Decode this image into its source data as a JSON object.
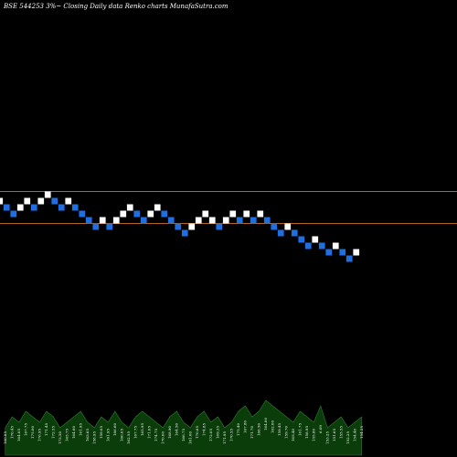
{
  "chart_data": {
    "type": "renko",
    "title": "BSE 544253 3%~  Closing Daily data  Renko  charts MunafaSutra.com",
    "colors": {
      "background": "#000000",
      "up_brick": "#ffffff",
      "down_brick": "#1f6fe0",
      "reference_line": "#b5651d",
      "volume_fill": "#0b3d0b",
      "volume_stroke": "#2f7a2f"
    },
    "bricks": [
      {
        "value": 0,
        "dir": "up"
      },
      {
        "value": -1,
        "dir": "down"
      },
      {
        "value": -2,
        "dir": "down"
      },
      {
        "value": -1,
        "dir": "up"
      },
      {
        "value": 0,
        "dir": "up"
      },
      {
        "value": -1,
        "dir": "down"
      },
      {
        "value": 0,
        "dir": "up"
      },
      {
        "value": 1,
        "dir": "up"
      },
      {
        "value": 0,
        "dir": "down"
      },
      {
        "value": -1,
        "dir": "down"
      },
      {
        "value": 0,
        "dir": "up"
      },
      {
        "value": -1,
        "dir": "down"
      },
      {
        "value": -2,
        "dir": "down"
      },
      {
        "value": -3,
        "dir": "down"
      },
      {
        "value": -4,
        "dir": "down"
      },
      {
        "value": -3,
        "dir": "up"
      },
      {
        "value": -4,
        "dir": "down"
      },
      {
        "value": -3,
        "dir": "up"
      },
      {
        "value": -2,
        "dir": "up"
      },
      {
        "value": -1,
        "dir": "up"
      },
      {
        "value": -2,
        "dir": "down"
      },
      {
        "value": -3,
        "dir": "down"
      },
      {
        "value": -2,
        "dir": "up"
      },
      {
        "value": -1,
        "dir": "up"
      },
      {
        "value": -2,
        "dir": "down"
      },
      {
        "value": -3,
        "dir": "down"
      },
      {
        "value": -4,
        "dir": "down"
      },
      {
        "value": -5,
        "dir": "down"
      },
      {
        "value": -4,
        "dir": "up"
      },
      {
        "value": -3,
        "dir": "up"
      },
      {
        "value": -2,
        "dir": "up"
      },
      {
        "value": -3,
        "dir": "up"
      },
      {
        "value": -4,
        "dir": "down"
      },
      {
        "value": -3,
        "dir": "up"
      },
      {
        "value": -2,
        "dir": "up"
      },
      {
        "value": -3,
        "dir": "down"
      },
      {
        "value": -2,
        "dir": "up"
      },
      {
        "value": -3,
        "dir": "down"
      },
      {
        "value": -2,
        "dir": "up"
      },
      {
        "value": -3,
        "dir": "down"
      },
      {
        "value": -4,
        "dir": "down"
      },
      {
        "value": -5,
        "dir": "down"
      },
      {
        "value": -4,
        "dir": "up"
      },
      {
        "value": -5,
        "dir": "down"
      },
      {
        "value": -6,
        "dir": "down"
      },
      {
        "value": -7,
        "dir": "down"
      },
      {
        "value": -6,
        "dir": "up"
      },
      {
        "value": -7,
        "dir": "down"
      },
      {
        "value": -8,
        "dir": "down"
      },
      {
        "value": -7,
        "dir": "up"
      },
      {
        "value": -8,
        "dir": "down"
      },
      {
        "value": -9,
        "dir": "down"
      },
      {
        "value": -8,
        "dir": "up"
      }
    ],
    "reference_levels": [
      2,
      -3
    ],
    "ohlc_labels": [
      "160.85",
      "170.45",
      "164.05",
      "167.75",
      "175.00",
      "176.95",
      "171.45",
      "172.55",
      "173.50",
      "165.75",
      "164.60",
      "161.95",
      "163.65",
      "158.95",
      "159.05",
      "161.95",
      "166.60",
      "160.05",
      "162.55",
      "167.75",
      "165.95",
      "171.05",
      "174.75",
      "170.00",
      "168.90",
      "164.50",
      "166.75",
      "161.00",
      "170.65",
      "174.85",
      "172.05",
      "169.35",
      "171.95",
      "170.55",
      "175.40",
      "167.80",
      "171.70",
      "168.50",
      "164.00",
      "162.00",
      "159.45",
      "159.70",
      "165.40",
      "161.75",
      "158.95",
      "155.80",
      "6.09",
      "153.25",
      "151.65",
      "155.55",
      "152.25",
      "154.40",
      "154.25"
    ],
    "volume": [
      3,
      5,
      4,
      6,
      5,
      4,
      6,
      5,
      3,
      4,
      5,
      6,
      4,
      3,
      5,
      4,
      6,
      4,
      3,
      5,
      6,
      5,
      4,
      3,
      5,
      6,
      4,
      3,
      5,
      6,
      4,
      5,
      3,
      4,
      6,
      7,
      5,
      6,
      8,
      7,
      6,
      5,
      4,
      6,
      5,
      4,
      7,
      3,
      4,
      5,
      3,
      4,
      5
    ]
  }
}
